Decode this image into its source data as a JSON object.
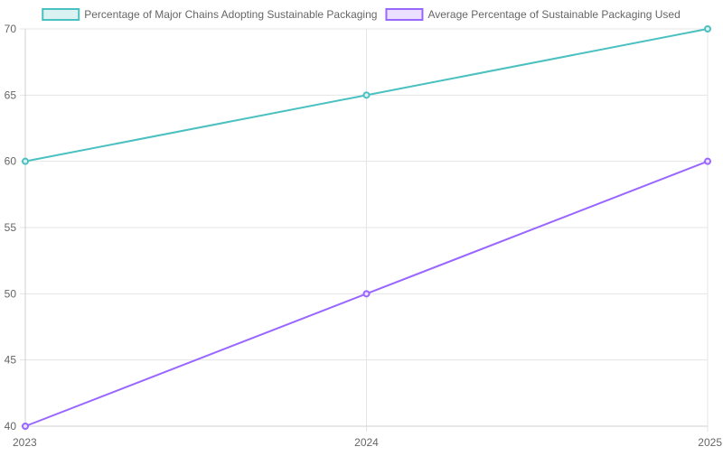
{
  "chart_data": {
    "type": "line",
    "x": [
      "2023",
      "2024",
      "2025"
    ],
    "y_ticks": [
      40,
      45,
      50,
      55,
      60,
      65,
      70
    ],
    "ylim": [
      40,
      70
    ],
    "grid": true,
    "legend_position": "top",
    "series": [
      {
        "name": "Percentage of Major Chains Adopting Sustainable Packaging",
        "values": [
          60,
          65,
          70
        ],
        "color": "#4bc0c0",
        "fill": "#dbf2f2"
      },
      {
        "name": "Average Percentage of Sustainable Packaging Used",
        "values": [
          40,
          50,
          60
        ],
        "color": "#9966ff",
        "fill": "#ebe0ff"
      }
    ]
  }
}
